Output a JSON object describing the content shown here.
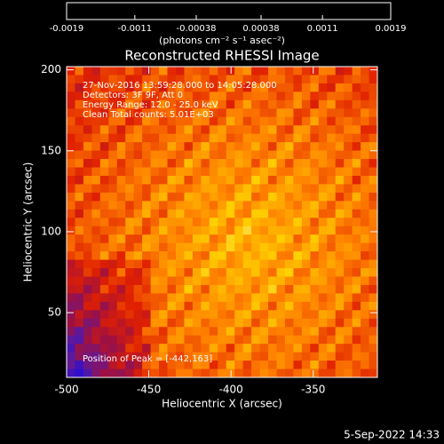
{
  "chart_data": {
    "type": "image",
    "title": "Reconstructed RHESSI Image",
    "annotations": [
      "27-Nov-2016 13:59:28.000 to 14:05:28.000",
      "Detectors: 3F 9F, Att 0",
      "Energy Range: 12.0 - 25.0 keV",
      "Clean     Total counts: 5.01E+03"
    ],
    "peak_label": "Position of Peak = [-442,163]",
    "xlabel": "Heliocentric X (arcsec)",
    "ylabel": "Heliocentric Y (arcsec)",
    "xlim": [
      -500,
      -311
    ],
    "xticks": [
      -500,
      -450,
      -400,
      -350
    ],
    "ylim": [
      10,
      202
    ],
    "yticks": [
      50,
      100,
      150,
      200
    ],
    "colorbar": {
      "lim": [
        -0.0019,
        0.0019
      ],
      "ticks": [
        -0.0019,
        -0.0011,
        -0.00038,
        0.00038,
        0.0011,
        0.0019
      ],
      "label": "(photons cm⁻² s⁻¹ asec⁻²)",
      "colormap": [
        "#0000ff",
        "#5a1aa0",
        "#a01040",
        "#e02000",
        "#ff8000",
        "#ffd000",
        "#ffffff"
      ]
    },
    "footer": "5-Sep-2022 14:33"
  }
}
